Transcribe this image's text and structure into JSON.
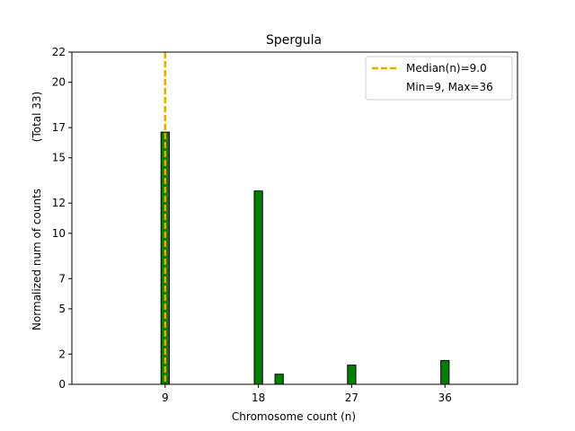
{
  "chart_data": {
    "type": "bar",
    "title": "Spergula",
    "xlabel": "Chromosome count (n)",
    "ylabel": "Normalized num of counts",
    "ylabel_secondary": "(Total 33)",
    "xlim": [
      0,
      43
    ],
    "ylim": [
      0,
      22
    ],
    "x_ticks": [
      9,
      18,
      27,
      36
    ],
    "y_ticks": [
      0,
      2,
      5,
      7,
      10,
      12,
      15,
      17,
      20,
      22
    ],
    "bar_width": 0.8,
    "bars": [
      {
        "x": 9,
        "value": 16.7
      },
      {
        "x": 18,
        "value": 12.8
      },
      {
        "x": 20,
        "value": 0.67
      },
      {
        "x": 27,
        "value": 1.27
      },
      {
        "x": 36,
        "value": 1.57
      }
    ],
    "median_line": {
      "x": 9,
      "label": "Median(n)=9.0",
      "color": "#e8a800"
    },
    "legend": {
      "placement": "top-right",
      "entries": [
        "Median(n)=9.0",
        "Min=9, Max=36"
      ]
    },
    "colors": {
      "bar_fill": "#008000",
      "bar_edge": "#000000",
      "median": "#e8a800"
    },
    "grid": false
  }
}
